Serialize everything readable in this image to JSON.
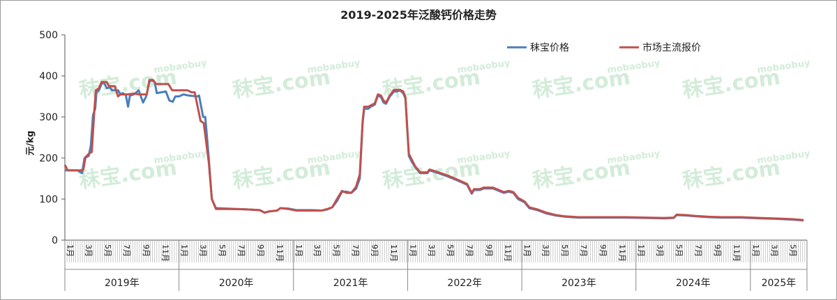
{
  "chart_data": {
    "type": "line",
    "title": "2019-2025年泛酸钙价格走势",
    "xlabel": "",
    "ylabel": "元/kg",
    "ylim": [
      0,
      500
    ],
    "yticks": [
      0,
      100,
      200,
      300,
      400,
      500
    ],
    "grid": false,
    "legend_position": "top-right",
    "watermark": "秣宝.com mobaobuy",
    "months_label_suffix": "月",
    "x_months_start": "2019-01",
    "x_months_end": "2025-06",
    "years": [
      {
        "label": "2019年"
      },
      {
        "label": "2020年"
      },
      {
        "label": "2021年"
      },
      {
        "label": "2022年"
      },
      {
        "label": "2023年"
      },
      {
        "label": "2024年"
      },
      {
        "label": "2025年"
      }
    ],
    "series": [
      {
        "name": "秣宝价格",
        "color": "#4a7ebb",
        "points": [
          [
            "2019-01-01",
            170
          ],
          [
            "2019-01-20",
            170
          ],
          [
            "2019-02-10",
            170
          ],
          [
            "2019-02-25",
            163
          ],
          [
            "2019-03-05",
            200
          ],
          [
            "2019-03-18",
            205
          ],
          [
            "2019-03-25",
            230
          ],
          [
            "2019-04-01",
            305
          ],
          [
            "2019-04-08",
            320
          ],
          [
            "2019-04-12",
            360
          ],
          [
            "2019-04-20",
            365
          ],
          [
            "2019-04-28",
            380
          ],
          [
            "2019-05-05",
            385
          ],
          [
            "2019-05-15",
            370
          ],
          [
            "2019-05-25",
            372
          ],
          [
            "2019-06-01",
            365
          ],
          [
            "2019-06-20",
            365
          ],
          [
            "2019-06-28",
            355
          ],
          [
            "2019-07-05",
            358
          ],
          [
            "2019-07-15",
            353
          ],
          [
            "2019-07-22",
            325
          ],
          [
            "2019-07-28",
            352
          ],
          [
            "2019-08-10",
            355
          ],
          [
            "2019-08-25",
            365
          ],
          [
            "2019-09-08",
            335
          ],
          [
            "2019-09-18",
            350
          ],
          [
            "2019-09-28",
            385
          ],
          [
            "2019-10-05",
            390
          ],
          [
            "2019-10-15",
            385
          ],
          [
            "2019-10-22",
            358
          ],
          [
            "2019-11-05",
            360
          ],
          [
            "2019-11-20",
            362
          ],
          [
            "2019-12-01",
            340
          ],
          [
            "2019-12-12",
            337
          ],
          [
            "2019-12-20",
            350
          ],
          [
            "2020-01-01",
            350
          ],
          [
            "2020-01-15",
            355
          ],
          [
            "2020-02-01",
            352
          ],
          [
            "2020-02-28",
            350
          ],
          [
            "2020-03-05",
            352
          ],
          [
            "2020-03-18",
            300
          ],
          [
            "2020-03-25",
            300
          ],
          [
            "2020-04-05",
            200
          ],
          [
            "2020-04-15",
            100
          ],
          [
            "2020-04-28",
            78
          ],
          [
            "2020-06-01",
            77
          ],
          [
            "2020-08-01",
            75
          ],
          [
            "2020-09-15",
            73
          ],
          [
            "2020-10-01",
            67
          ],
          [
            "2020-10-15",
            70
          ],
          [
            "2020-11-10",
            72
          ],
          [
            "2020-11-20",
            78
          ],
          [
            "2020-12-15",
            77
          ],
          [
            "2021-01-10",
            73
          ],
          [
            "2021-03-01",
            73
          ],
          [
            "2021-04-01",
            72
          ],
          [
            "2021-04-20",
            75
          ],
          [
            "2021-05-05",
            80
          ],
          [
            "2021-05-20",
            95
          ],
          [
            "2021-06-05",
            118
          ],
          [
            "2021-06-20",
            118
          ],
          [
            "2021-07-05",
            115
          ],
          [
            "2021-07-20",
            125
          ],
          [
            "2021-08-01",
            150
          ],
          [
            "2021-08-10",
            285
          ],
          [
            "2021-08-15",
            320
          ],
          [
            "2021-08-28",
            320
          ],
          [
            "2021-09-05",
            325
          ],
          [
            "2021-09-18",
            330
          ],
          [
            "2021-09-28",
            352
          ],
          [
            "2021-10-08",
            348
          ],
          [
            "2021-10-16",
            335
          ],
          [
            "2021-10-24",
            332
          ],
          [
            "2021-11-05",
            350
          ],
          [
            "2021-11-18",
            362
          ],
          [
            "2021-11-28",
            362
          ],
          [
            "2021-12-08",
            365
          ],
          [
            "2021-12-18",
            358
          ],
          [
            "2021-12-25",
            345
          ],
          [
            "2021-12-30",
            285
          ],
          [
            "2022-01-05",
            205
          ],
          [
            "2022-01-15",
            190
          ],
          [
            "2022-01-25",
            178
          ],
          [
            "2022-02-10",
            163
          ],
          [
            "2022-03-05",
            163
          ],
          [
            "2022-03-12",
            170
          ],
          [
            "2022-04-10",
            163
          ],
          [
            "2022-05-10",
            155
          ],
          [
            "2022-06-10",
            145
          ],
          [
            "2022-07-10",
            135
          ],
          [
            "2022-07-25",
            113
          ],
          [
            "2022-08-01",
            122
          ],
          [
            "2022-08-20",
            122
          ],
          [
            "2022-09-01",
            126
          ],
          [
            "2022-10-01",
            126
          ],
          [
            "2022-10-20",
            120
          ],
          [
            "2022-11-05",
            115
          ],
          [
            "2022-11-20",
            118
          ],
          [
            "2022-12-05",
            115
          ],
          [
            "2022-12-20",
            100
          ],
          [
            "2023-01-10",
            92
          ],
          [
            "2023-01-25",
            78
          ],
          [
            "2023-02-20",
            73
          ],
          [
            "2023-03-20",
            65
          ],
          [
            "2023-04-20",
            60
          ],
          [
            "2023-05-20",
            57
          ],
          [
            "2023-07-01",
            55
          ],
          [
            "2023-08-01",
            55
          ],
          [
            "2023-10-01",
            55
          ],
          [
            "2023-12-01",
            55
          ],
          [
            "2024-02-01",
            54
          ],
          [
            "2024-04-01",
            53
          ],
          [
            "2024-05-01",
            54
          ],
          [
            "2024-05-10",
            61
          ],
          [
            "2024-06-10",
            60
          ],
          [
            "2024-07-10",
            58
          ],
          [
            "2024-08-20",
            56
          ],
          [
            "2024-10-01",
            55
          ],
          [
            "2024-12-01",
            55
          ],
          [
            "2025-02-01",
            53
          ],
          [
            "2025-03-15",
            52
          ],
          [
            "2025-04-15",
            51
          ],
          [
            "2025-05-15",
            50
          ],
          [
            "2025-06-20",
            48
          ]
        ]
      },
      {
        "name": "市场主流报价",
        "color": "#c0504d",
        "points": [
          [
            "2019-01-01",
            183
          ],
          [
            "2019-01-10",
            170
          ],
          [
            "2019-02-20",
            170
          ],
          [
            "2019-03-01",
            172
          ],
          [
            "2019-03-08",
            202
          ],
          [
            "2019-03-18",
            210
          ],
          [
            "2019-03-28",
            215
          ],
          [
            "2019-04-05",
            312
          ],
          [
            "2019-04-10",
            365
          ],
          [
            "2019-04-20",
            370
          ],
          [
            "2019-04-28",
            385
          ],
          [
            "2019-05-15",
            385
          ],
          [
            "2019-05-22",
            375
          ],
          [
            "2019-06-10",
            375
          ],
          [
            "2019-06-20",
            350
          ],
          [
            "2019-06-28",
            355
          ],
          [
            "2019-07-20",
            355
          ],
          [
            "2019-08-10",
            357
          ],
          [
            "2019-08-25",
            355
          ],
          [
            "2019-09-20",
            355
          ],
          [
            "2019-09-28",
            390
          ],
          [
            "2019-10-10",
            390
          ],
          [
            "2019-10-20",
            380
          ],
          [
            "2019-11-28",
            380
          ],
          [
            "2019-12-10",
            365
          ],
          [
            "2020-01-10",
            365
          ],
          [
            "2020-01-28",
            365
          ],
          [
            "2020-02-10",
            360
          ],
          [
            "2020-02-20",
            360
          ],
          [
            "2020-03-10",
            290
          ],
          [
            "2020-03-20",
            285
          ],
          [
            "2020-04-05",
            190
          ],
          [
            "2020-04-15",
            100
          ],
          [
            "2020-04-28",
            76
          ],
          [
            "2020-06-01",
            76
          ],
          [
            "2020-08-01",
            75
          ],
          [
            "2020-09-15",
            73
          ],
          [
            "2020-10-01",
            67
          ],
          [
            "2020-10-15",
            70
          ],
          [
            "2020-11-10",
            72
          ],
          [
            "2020-11-20",
            78
          ],
          [
            "2020-12-15",
            76
          ],
          [
            "2021-01-10",
            72
          ],
          [
            "2021-03-01",
            72
          ],
          [
            "2021-04-01",
            72
          ],
          [
            "2021-04-20",
            76
          ],
          [
            "2021-05-05",
            80
          ],
          [
            "2021-05-20",
            100
          ],
          [
            "2021-06-05",
            120
          ],
          [
            "2021-06-20",
            115
          ],
          [
            "2021-07-05",
            115
          ],
          [
            "2021-07-20",
            130
          ],
          [
            "2021-08-01",
            160
          ],
          [
            "2021-08-10",
            290
          ],
          [
            "2021-08-15",
            325
          ],
          [
            "2021-08-28",
            325
          ],
          [
            "2021-09-05",
            328
          ],
          [
            "2021-09-18",
            333
          ],
          [
            "2021-09-28",
            355
          ],
          [
            "2021-10-08",
            352
          ],
          [
            "2021-10-16",
            340
          ],
          [
            "2021-10-24",
            335
          ],
          [
            "2021-11-05",
            352
          ],
          [
            "2021-11-18",
            366
          ],
          [
            "2021-11-28",
            366
          ],
          [
            "2021-12-08",
            366
          ],
          [
            "2021-12-18",
            362
          ],
          [
            "2021-12-25",
            348
          ],
          [
            "2021-12-30",
            280
          ],
          [
            "2022-01-05",
            210
          ],
          [
            "2022-01-15",
            195
          ],
          [
            "2022-01-25",
            180
          ],
          [
            "2022-02-10",
            165
          ],
          [
            "2022-03-05",
            165
          ],
          [
            "2022-03-12",
            172
          ],
          [
            "2022-04-10",
            165
          ],
          [
            "2022-05-10",
            157
          ],
          [
            "2022-06-10",
            147
          ],
          [
            "2022-07-10",
            137
          ],
          [
            "2022-07-25",
            115
          ],
          [
            "2022-08-01",
            124
          ],
          [
            "2022-08-20",
            124
          ],
          [
            "2022-09-01",
            128
          ],
          [
            "2022-10-01",
            128
          ],
          [
            "2022-10-20",
            122
          ],
          [
            "2022-11-05",
            117
          ],
          [
            "2022-11-20",
            120
          ],
          [
            "2022-12-05",
            117
          ],
          [
            "2022-12-20",
            103
          ],
          [
            "2023-01-10",
            94
          ],
          [
            "2023-01-25",
            80
          ],
          [
            "2023-02-20",
            75
          ],
          [
            "2023-03-20",
            67
          ],
          [
            "2023-04-20",
            61
          ],
          [
            "2023-05-20",
            58
          ],
          [
            "2023-07-01",
            56
          ],
          [
            "2023-08-01",
            56
          ],
          [
            "2023-10-01",
            56
          ],
          [
            "2023-12-01",
            56
          ],
          [
            "2024-02-01",
            55
          ],
          [
            "2024-04-01",
            54
          ],
          [
            "2024-05-01",
            55
          ],
          [
            "2024-05-10",
            62
          ],
          [
            "2024-06-10",
            61
          ],
          [
            "2024-07-10",
            59
          ],
          [
            "2024-08-20",
            57
          ],
          [
            "2024-10-01",
            56
          ],
          [
            "2024-12-01",
            56
          ],
          [
            "2025-02-01",
            54
          ],
          [
            "2025-03-15",
            53
          ],
          [
            "2025-04-15",
            52
          ],
          [
            "2025-05-15",
            51
          ],
          [
            "2025-06-20",
            49
          ]
        ]
      }
    ]
  }
}
